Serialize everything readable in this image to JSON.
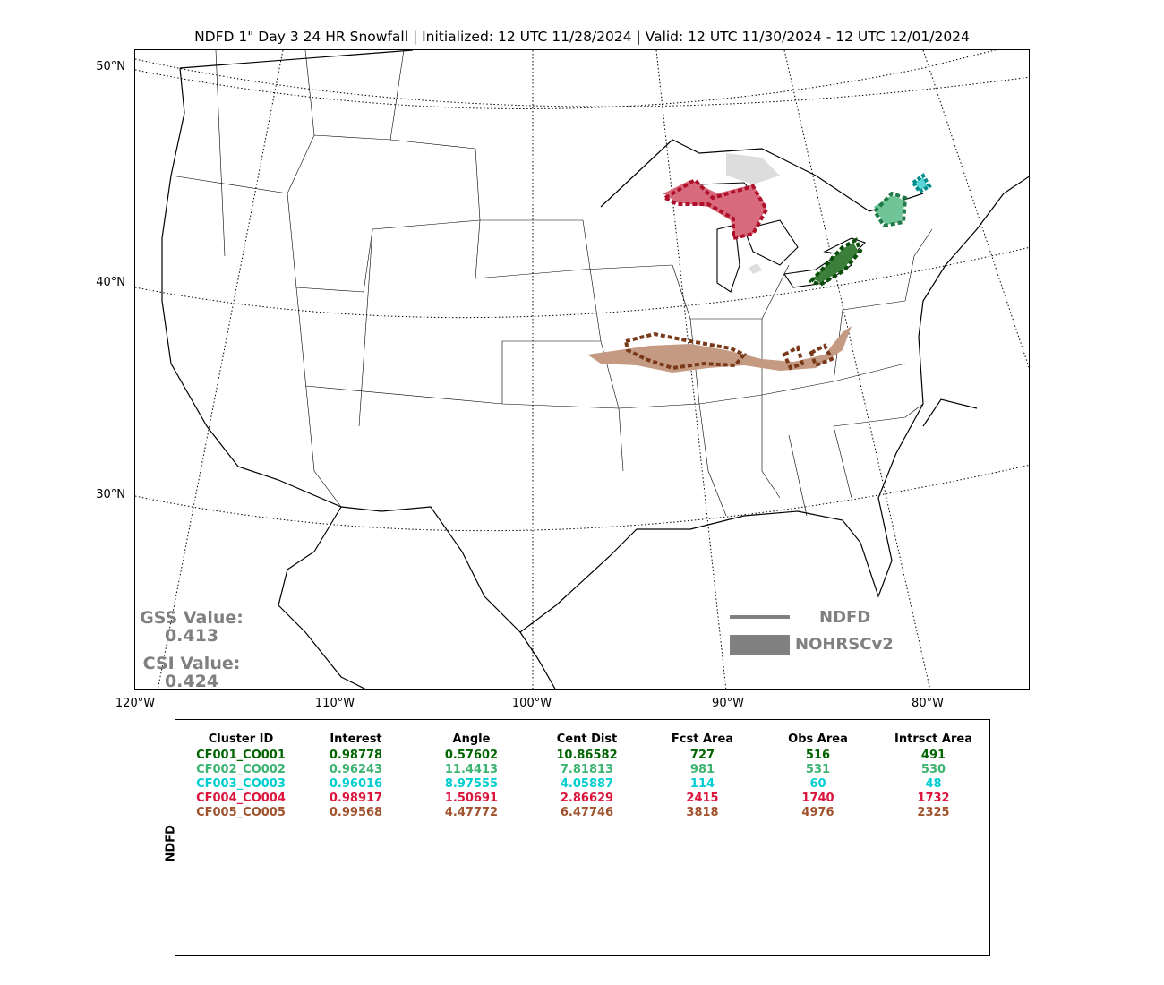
{
  "title": "NDFD 1\" Day 3 24 HR Snowfall | Initialized: 12 UTC 11/28/2024 | Valid: 12 UTC 11/30/2024 - 12 UTC 12/01/2024",
  "map": {
    "lat_labels": [
      "50°N",
      "40°N",
      "30°N"
    ],
    "lon_labels": [
      "120°W",
      "110°W",
      "100°W",
      "90°W",
      "80°W"
    ]
  },
  "scores": {
    "gss_label": "GSS Value:",
    "gss_value": "0.413",
    "csi_label": "CSI Value:",
    "csi_value": "0.424"
  },
  "legend": {
    "forecast_label": "NDFD",
    "observed_label": "NOHRSCv2",
    "color": "#808080"
  },
  "table": {
    "side_label": "NDFD",
    "headers": [
      "Cluster ID",
      "Interest",
      "Angle",
      "Cent Dist",
      "Fcst Area",
      "Obs Area",
      "Intrsct Area"
    ],
    "rows": [
      {
        "color": "#006400",
        "cells": [
          "CF001_CO001",
          "0.98778",
          "0.57602",
          "10.86582",
          "727",
          "516",
          "491"
        ]
      },
      {
        "color": "#3cb371",
        "cells": [
          "CF002_CO002",
          "0.96243",
          "11.4413",
          "7.81813",
          "981",
          "531",
          "530"
        ]
      },
      {
        "color": "#00ced1",
        "cells": [
          "CF003_CO003",
          "0.96016",
          "8.97555",
          "4.05887",
          "114",
          "60",
          "48"
        ]
      },
      {
        "color": "#dc143c",
        "cells": [
          "CF004_CO004",
          "0.98917",
          "1.50691",
          "2.86629",
          "2415",
          "1740",
          "1732"
        ]
      },
      {
        "color": "#a0522d",
        "cells": [
          "CF005_CO005",
          "0.99568",
          "4.47772",
          "6.47746",
          "3818",
          "4976",
          "2325"
        ]
      }
    ]
  }
}
